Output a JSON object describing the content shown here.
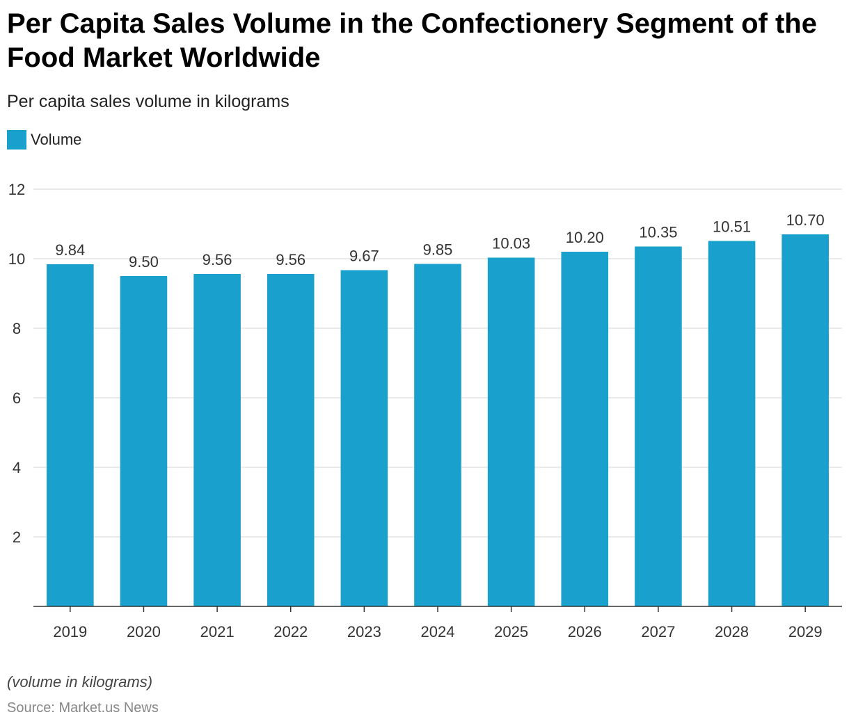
{
  "title": "Per Capita Sales Volume in the Confectionery Segment of the Food Market Worldwide",
  "subtitle": "Per capita sales volume in kilograms",
  "legend": [
    {
      "label": "Volume",
      "color": "#1aa0cc"
    }
  ],
  "footnote": "(volume in kilograms)",
  "source": "Source: Market.us News",
  "chart_data": {
    "type": "bar",
    "categories": [
      "2019",
      "2020",
      "2021",
      "2022",
      "2023",
      "2024",
      "2025",
      "2026",
      "2027",
      "2028",
      "2029"
    ],
    "series": [
      {
        "name": "Volume",
        "color": "#1aa0cc",
        "values": [
          9.84,
          9.5,
          9.56,
          9.56,
          9.67,
          9.85,
          10.03,
          10.2,
          10.35,
          10.51,
          10.7
        ],
        "labels": [
          "9.84",
          "9.50",
          "9.56",
          "9.56",
          "9.67",
          "9.85",
          "10.03",
          "10.20",
          "10.35",
          "10.51",
          "10.70"
        ]
      }
    ],
    "ylim": [
      0,
      12
    ],
    "yticks": [
      2,
      4,
      6,
      8,
      10,
      12
    ],
    "grid": true,
    "legend_position": "top-left"
  }
}
